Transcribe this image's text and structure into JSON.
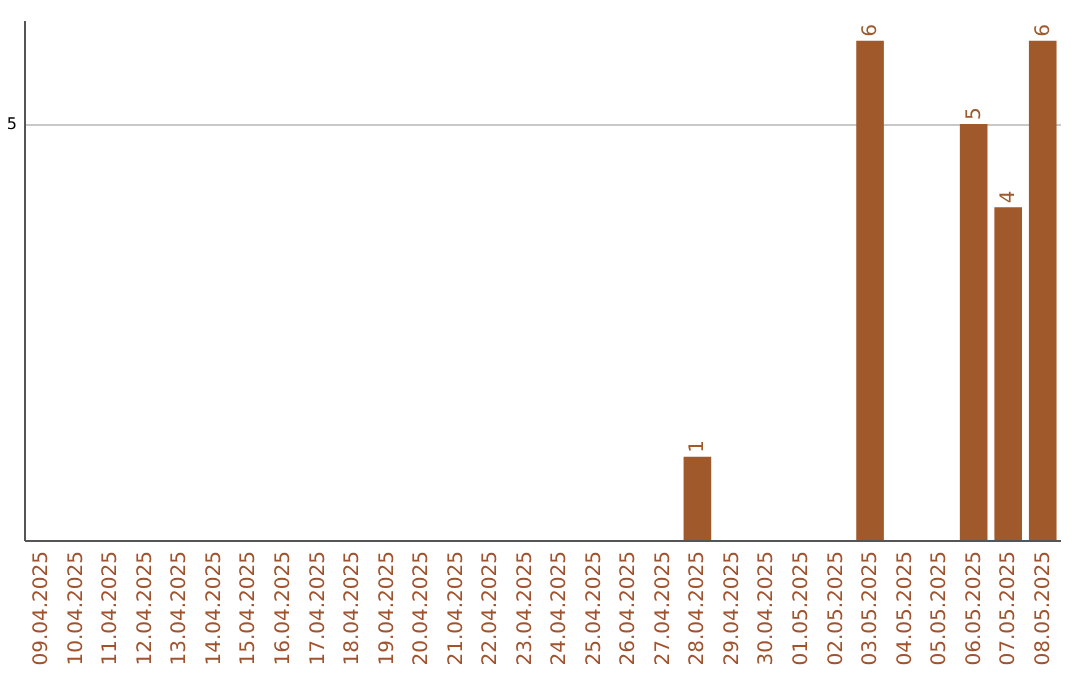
{
  "chart_data": {
    "type": "bar",
    "categories": [
      "09.04.2025",
      "10.04.2025",
      "11.04.2025",
      "12.04.2025",
      "13.04.2025",
      "14.04.2025",
      "15.04.2025",
      "16.04.2025",
      "17.04.2025",
      "18.04.2025",
      "19.04.2025",
      "20.04.2025",
      "21.04.2025",
      "22.04.2025",
      "23.04.2025",
      "24.04.2025",
      "25.04.2025",
      "26.04.2025",
      "27.04.2025",
      "28.04.2025",
      "29.04.2025",
      "30.04.2025",
      "01.05.2025",
      "02.05.2025",
      "03.05.2025",
      "04.05.2025",
      "05.05.2025",
      "06.05.2025",
      "07.05.2025",
      "08.05.2025"
    ],
    "values": [
      null,
      null,
      null,
      null,
      null,
      null,
      null,
      null,
      null,
      null,
      null,
      null,
      null,
      null,
      null,
      null,
      null,
      null,
      null,
      1,
      null,
      null,
      null,
      null,
      6,
      null,
      null,
      5,
      4,
      6
    ],
    "color": "#a0592a",
    "ylim": [
      0,
      6.25
    ],
    "yticks": [
      5
    ],
    "grid": "y",
    "data_labels": true
  }
}
